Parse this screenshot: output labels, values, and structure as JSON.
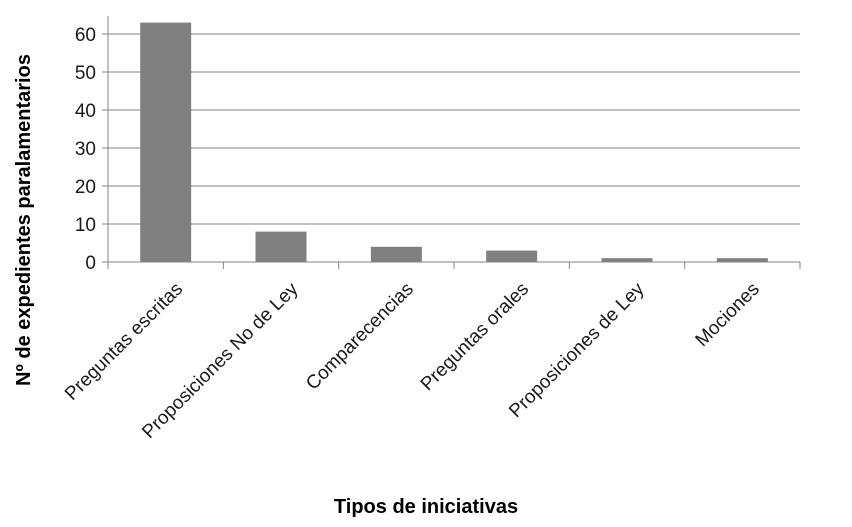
{
  "chart_data": {
    "type": "bar",
    "title": "",
    "xlabel": "Tipos de iniciativas",
    "ylabel": "Nº de expedientes paralamentarios",
    "categories": [
      "Preguntas escritas",
      "Proposiciones No de Ley",
      "Comparecencias",
      "Preguntas orales",
      "Proposiciones de Ley",
      "Mociones"
    ],
    "values": [
      63,
      8,
      4,
      3,
      1,
      1
    ],
    "ylim": [
      0,
      60
    ],
    "yticks": [
      "0",
      "10",
      "20",
      "30",
      "40",
      "50",
      "60"
    ],
    "grid": true,
    "legend": "none",
    "colors": {
      "bar": "#808080",
      "grid": "#868686",
      "axis": "#868686"
    }
  }
}
